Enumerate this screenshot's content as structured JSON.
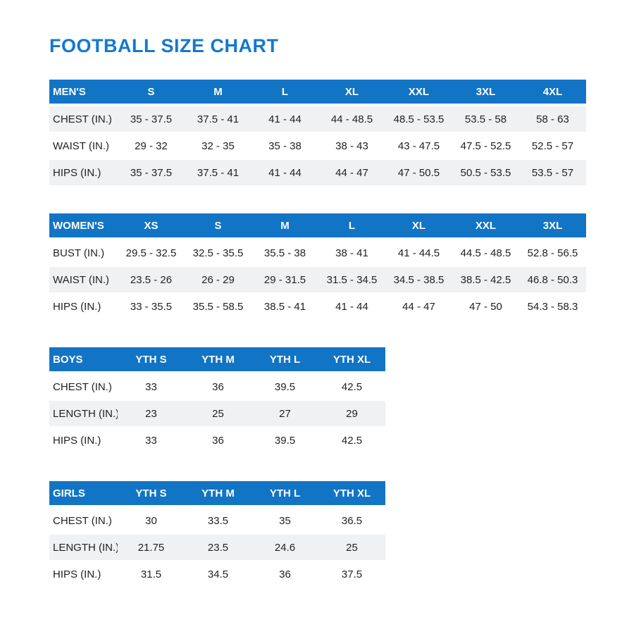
{
  "page": {
    "title": "FOOTBALL SIZE CHART",
    "accent_color": "#1274c5",
    "title_color": "#1478d0",
    "shaded_row_color": "#f0f1f3"
  },
  "tables": [
    {
      "name": "mens",
      "header": [
        "MEN'S",
        "S",
        "M",
        "L",
        "XL",
        "XXL",
        "3XL",
        "4XL"
      ],
      "rows": [
        {
          "label": "CHEST (IN.)",
          "shaded": true,
          "values": [
            "35 - 37.5",
            "37.5 - 41",
            "41 - 44",
            "44 - 48.5",
            "48.5 - 53.5",
            "53.5 - 58",
            "58 - 63"
          ]
        },
        {
          "label": "WAIST (IN.)",
          "shaded": false,
          "values": [
            "29 - 32",
            "32 - 35",
            "35 - 38",
            "38 - 43",
            "43 - 47.5",
            "47.5 - 52.5",
            "52.5 - 57"
          ]
        },
        {
          "label": "HIPS (IN.)",
          "shaded": true,
          "values": [
            "35 - 37.5",
            "37.5 - 41",
            "41 - 44",
            "44 - 47",
            "47 - 50.5",
            "50.5 - 53.5",
            "53.5 - 57"
          ]
        }
      ]
    },
    {
      "name": "womens",
      "header": [
        "WOMEN'S",
        "XS",
        "S",
        "M",
        "L",
        "XL",
        "XXL",
        "3XL"
      ],
      "rows": [
        {
          "label": "BUST (IN.)",
          "shaded": false,
          "values": [
            "29.5 - 32.5",
            "32.5 - 35.5",
            "35.5 - 38",
            "38 - 41",
            "41 - 44.5",
            "44.5 - 48.5",
            "52.8 - 56.5"
          ]
        },
        {
          "label": "WAIST (IN.)",
          "shaded": true,
          "values": [
            "23.5 - 26",
            "26 - 29",
            "29 - 31.5",
            "31.5 - 34.5",
            "34.5 - 38.5",
            "38.5 - 42.5",
            "46.8 - 50.3"
          ]
        },
        {
          "label": "HIPS (IN.)",
          "shaded": false,
          "values": [
            "33 - 35.5",
            "35.5 - 58.5",
            "38.5 - 41",
            "41 - 44",
            "44 - 47",
            "47 - 50",
            "54.3 - 58.3"
          ]
        }
      ]
    },
    {
      "name": "boys",
      "header": [
        "BOYS",
        "YTH S",
        "YTH M",
        "YTH L",
        "YTH XL"
      ],
      "rows": [
        {
          "label": "CHEST (IN.)",
          "shaded": false,
          "values": [
            "33",
            "36",
            "39.5",
            "42.5"
          ]
        },
        {
          "label": "LENGTH (IN.)",
          "shaded": true,
          "values": [
            "23",
            "25",
            "27",
            "29"
          ]
        },
        {
          "label": "HIPS (IN.)",
          "shaded": false,
          "values": [
            "33",
            "36",
            "39.5",
            "42.5"
          ]
        }
      ]
    },
    {
      "name": "girls",
      "header": [
        "GIRLS",
        "YTH S",
        "YTH M",
        "YTH L",
        "YTH XL"
      ],
      "rows": [
        {
          "label": "CHEST (IN.)",
          "shaded": false,
          "values": [
            "30",
            "33.5",
            "35",
            "36.5"
          ]
        },
        {
          "label": "LENGTH (IN.)",
          "shaded": true,
          "values": [
            "21.75",
            "23.5",
            "24.6",
            "25"
          ]
        },
        {
          "label": "HIPS (IN.)",
          "shaded": false,
          "values": [
            "31.5",
            "34.5",
            "36",
            "37.5"
          ]
        }
      ]
    }
  ]
}
